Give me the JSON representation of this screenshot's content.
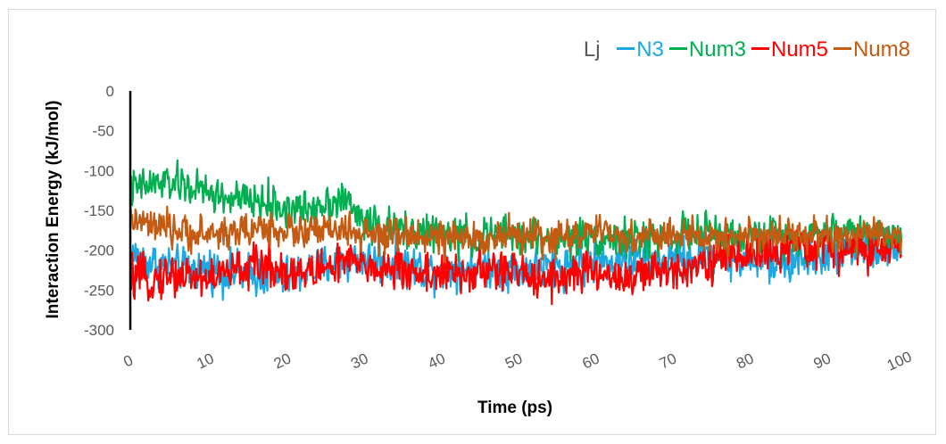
{
  "chart_data": {
    "type": "line",
    "xlabel": "Time (ps)",
    "ylabel": "Interaction Energy (kJ/mol)",
    "xlim": [
      0,
      100
    ],
    "ylim": [
      -300,
      0
    ],
    "x_ticks": [
      "0",
      "10",
      "20",
      "30",
      "40",
      "50",
      "60",
      "70",
      "80",
      "90",
      "100"
    ],
    "y_ticks": [
      "0",
      "-50",
      "-100",
      "-150",
      "-200",
      "-250",
      "-300"
    ],
    "legend_title": "Lj",
    "legend_position": "top-right",
    "grid": false,
    "series": [
      {
        "name": "N3",
        "color": "#1BA8E4",
        "x": [
          0,
          2.5,
          5,
          7.5,
          10,
          12.5,
          15,
          17.5,
          20,
          22.5,
          25,
          27.5,
          30,
          32.5,
          35,
          37.5,
          40,
          42.5,
          45,
          47.5,
          50,
          52.5,
          55,
          57.5,
          60,
          62.5,
          65,
          67.5,
          70,
          72.5,
          75,
          77.5,
          80,
          82.5,
          85,
          87.5,
          90,
          92.5,
          95,
          97.5,
          100
        ],
        "values": [
          -205,
          -215,
          -220,
          -225,
          -222,
          -228,
          -230,
          -232,
          -235,
          -228,
          -220,
          -215,
          -210,
          -215,
          -218,
          -222,
          -225,
          -220,
          -218,
          -222,
          -225,
          -222,
          -220,
          -218,
          -215,
          -212,
          -210,
          -213,
          -215,
          -210,
          -205,
          -210,
          -212,
          -218,
          -215,
          -210,
          -205,
          -200,
          -195,
          -200,
          -198
        ]
      },
      {
        "name": "Num3",
        "color": "#00B050",
        "x": [
          0,
          2.5,
          5,
          7.5,
          10,
          12.5,
          15,
          17.5,
          20,
          22.5,
          25,
          27.5,
          30,
          32.5,
          35,
          37.5,
          40,
          42.5,
          45,
          47.5,
          50,
          52.5,
          55,
          57.5,
          60,
          62.5,
          65,
          67.5,
          70,
          72.5,
          75,
          77.5,
          80,
          82.5,
          85,
          87.5,
          90,
          92.5,
          95,
          97.5,
          100
        ],
        "values": [
          -125,
          -118,
          -115,
          -120,
          -128,
          -135,
          -138,
          -140,
          -148,
          -150,
          -140,
          -135,
          -160,
          -172,
          -175,
          -178,
          -180,
          -182,
          -185,
          -180,
          -182,
          -185,
          -188,
          -185,
          -183,
          -185,
          -188,
          -185,
          -182,
          -178,
          -180,
          -182,
          -185,
          -183,
          -180,
          -182,
          -178,
          -175,
          -178,
          -180,
          -182
        ]
      },
      {
        "name": "Num5",
        "color": "#FF0000",
        "x": [
          0,
          2.5,
          5,
          7.5,
          10,
          12.5,
          15,
          17.5,
          20,
          22.5,
          25,
          27.5,
          30,
          32.5,
          35,
          37.5,
          40,
          42.5,
          45,
          47.5,
          50,
          52.5,
          55,
          57.5,
          60,
          62.5,
          65,
          67.5,
          70,
          72.5,
          75,
          77.5,
          80,
          82.5,
          85,
          87.5,
          90,
          92.5,
          95,
          97.5,
          100
        ],
        "values": [
          -235,
          -238,
          -230,
          -232,
          -235,
          -228,
          -222,
          -218,
          -225,
          -230,
          -222,
          -215,
          -218,
          -222,
          -225,
          -228,
          -230,
          -232,
          -228,
          -225,
          -228,
          -232,
          -235,
          -230,
          -228,
          -232,
          -235,
          -230,
          -225,
          -218,
          -212,
          -208,
          -205,
          -202,
          -200,
          -198,
          -195,
          -198,
          -200,
          -202,
          -200
        ]
      },
      {
        "name": "Num8",
        "color": "#C55A11",
        "x": [
          0,
          2.5,
          5,
          7.5,
          10,
          12.5,
          15,
          17.5,
          20,
          22.5,
          25,
          27.5,
          30,
          32.5,
          35,
          37.5,
          40,
          42.5,
          45,
          47.5,
          50,
          52.5,
          55,
          57.5,
          60,
          62.5,
          65,
          67.5,
          70,
          72.5,
          75,
          77.5,
          80,
          82.5,
          85,
          87.5,
          90,
          92.5,
          95,
          97.5,
          100
        ],
        "values": [
          -160,
          -170,
          -175,
          -178,
          -180,
          -178,
          -175,
          -172,
          -175,
          -178,
          -176,
          -175,
          -180,
          -185,
          -182,
          -180,
          -185,
          -188,
          -185,
          -182,
          -180,
          -183,
          -185,
          -180,
          -178,
          -182,
          -185,
          -182,
          -180,
          -183,
          -185,
          -182,
          -180,
          -183,
          -178,
          -180,
          -182,
          -185,
          -183,
          -180,
          -182
        ]
      }
    ]
  }
}
